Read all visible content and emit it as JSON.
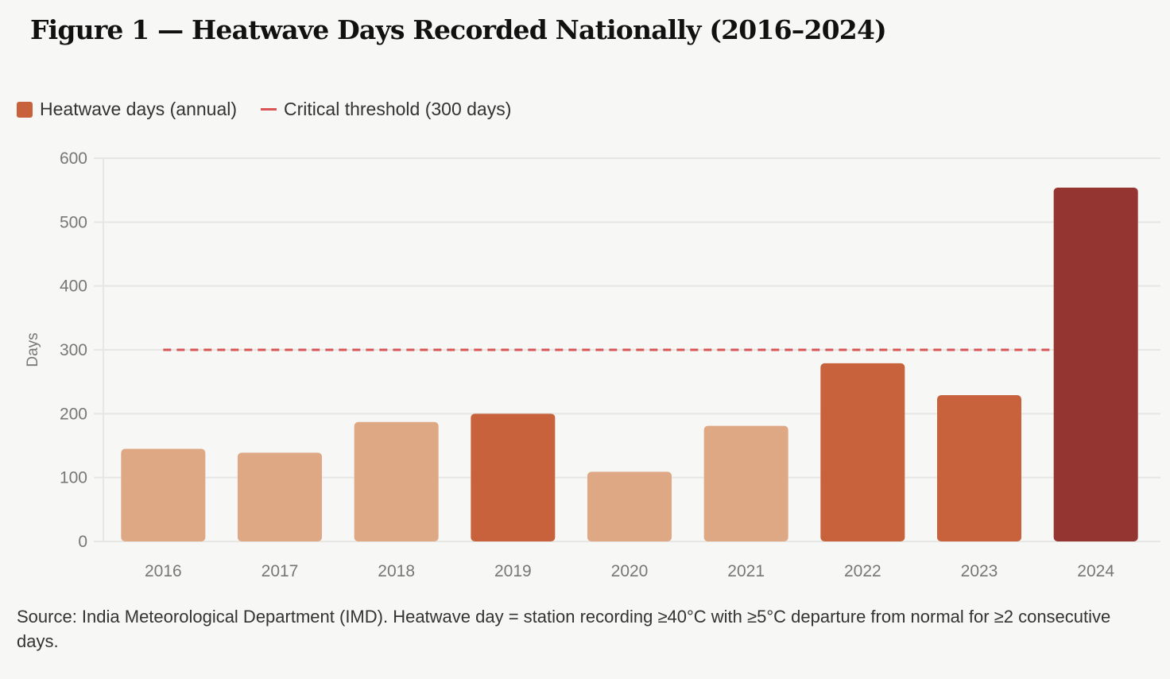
{
  "title": "Figure 1 — Heatwave Days Recorded Nationally (2016–2024)",
  "legend": {
    "bars": "Heatwave days (annual)",
    "threshold": "Critical threshold (300 days)"
  },
  "source": "Source: India Meteorological Department (IMD). Heatwave day = station recording ≥40°C with ≥5°C departure from normal for ≥2 consecutive days.",
  "colors": {
    "light": "#DFA884",
    "medium": "#C8623D",
    "dark": "#943532",
    "threshold": "#D95555",
    "grid": "#E6E6E3"
  },
  "chart_data": {
    "type": "bar",
    "title": "Figure 1 — Heatwave Days Recorded Nationally (2016–2024)",
    "xlabel": "",
    "ylabel": "Days",
    "categories": [
      "2016",
      "2017",
      "2018",
      "2019",
      "2020",
      "2021",
      "2022",
      "2023",
      "2024"
    ],
    "values": [
      145,
      139,
      187,
      200,
      109,
      181,
      279,
      229,
      554
    ],
    "ylim": [
      0,
      600
    ],
    "yticks": [
      0,
      100,
      200,
      300,
      400,
      500,
      600
    ],
    "threshold": 300,
    "grid": true,
    "legend_position": "top-left"
  }
}
